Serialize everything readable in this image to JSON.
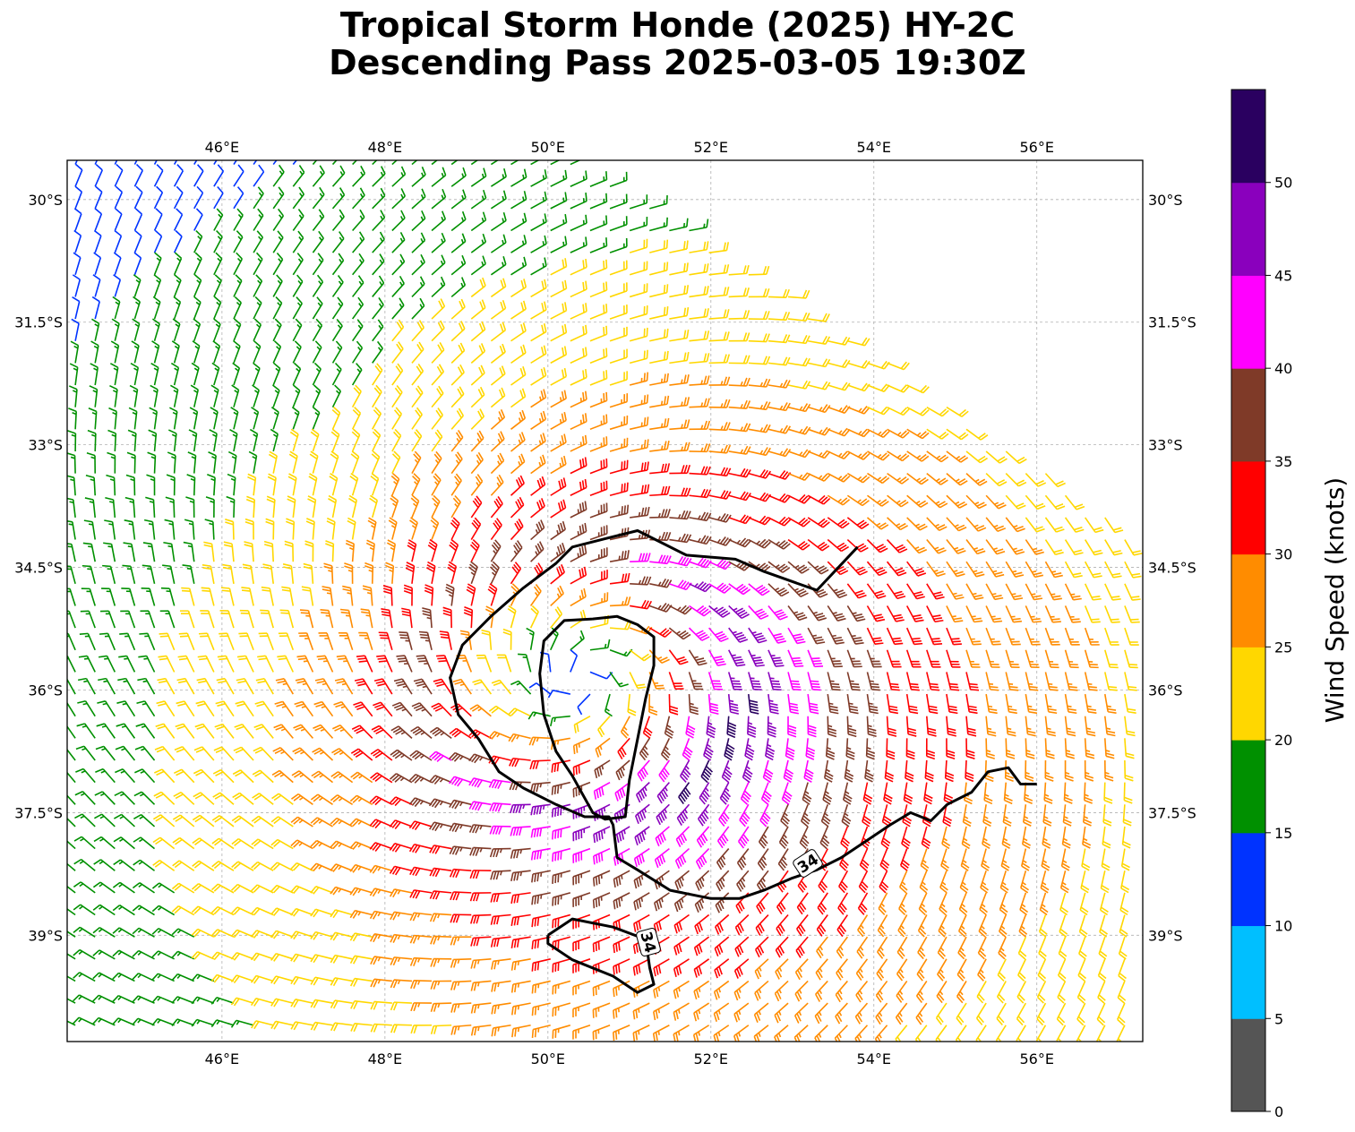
{
  "title": {
    "line1": "Tropical Storm Honde (2025) HY-2C",
    "line2": "Descending Pass 2025-03-05 19:30Z"
  },
  "map": {
    "lon_range": [
      44.1,
      57.3
    ],
    "lat_range": [
      -40.3,
      -29.52
    ],
    "lon_ticks": [
      46,
      48,
      50,
      52,
      54,
      56
    ],
    "lon_tick_labels": [
      "46°E",
      "48°E",
      "50°E",
      "52°E",
      "54°E",
      "56°E"
    ],
    "lat_ticks": [
      -30,
      -31.5,
      -33,
      -34.5,
      -36,
      -37.5,
      -39
    ],
    "lat_tick_labels": [
      "30°S",
      "31.5°S",
      "33°S",
      "34.5°S",
      "36°S",
      "37.5°S",
      "39°S"
    ],
    "grid": "dashed gray",
    "storm_center_approx": [
      50.4,
      -35.8
    ],
    "swath_note": "descending pass; no data NE of diagonal edge",
    "contour_level": 34,
    "contour_labels": [
      "34",
      "34"
    ],
    "contours": [
      [
        [
          44.1,
          -40.3
        ]
      ],
      [
        [
          50.39,
          -35.71
        ],
        [
          50.87,
          -34.28
        ],
        [
          51.77,
          -34.35
        ],
        [
          53.17,
          -34.7
        ],
        [
          53.8,
          -34.25
        ]
      ],
      [
        [
          50.76,
          -37.55
        ],
        [
          51.1,
          -38.0
        ],
        [
          52.33,
          -38.29
        ],
        [
          53.0,
          -38.05
        ],
        [
          53.6,
          -37.8
        ],
        [
          54.4,
          -37.42
        ],
        [
          54.85,
          -37.3
        ],
        [
          55.13,
          -37.0
        ],
        [
          55.43,
          -36.83
        ],
        [
          55.7,
          -36.8
        ],
        [
          56.0,
          -37.05
        ]
      ],
      [
        [
          50.1,
          -38.85
        ],
        [
          50.45,
          -38.86
        ],
        [
          51.2,
          -39.3
        ],
        [
          51.26,
          -39.95
        ],
        [
          50.8,
          -39.6
        ],
        [
          50.0,
          -39.1
        ]
      ]
    ]
  },
  "colorbar": {
    "label": "Wind Speed (knots)",
    "bounds": [
      0,
      5,
      10,
      15,
      20,
      25,
      30,
      35,
      40,
      45,
      50,
      55
    ],
    "tick_labels": [
      "0",
      "5",
      "10",
      "15",
      "20",
      "25",
      "30",
      "35",
      "40",
      "45",
      "50"
    ],
    "colors": [
      "#555555",
      "#00bfff",
      "#0033ff",
      "#009000",
      "#ffd700",
      "#ff8c00",
      "#ff0000",
      "#7f3a28",
      "#ff00ff",
      "#8a00bd",
      "#2a0060"
    ]
  },
  "wind_model": {
    "center_lon": 50.4,
    "center_lat": -35.9,
    "rmw_deg": 1.6,
    "vmax_kt": 44,
    "units": "knots"
  }
}
